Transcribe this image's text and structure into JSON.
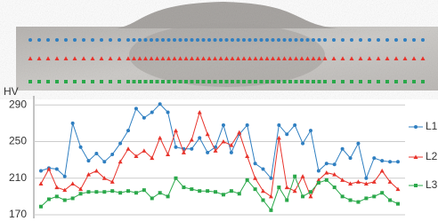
{
  "chart_data": {
    "type": "line",
    "y_label": "HV",
    "ylim": [
      170,
      300
    ],
    "yticks": [
      170,
      210,
      250,
      290
    ],
    "grid": true,
    "series": [
      {
        "name": "L1",
        "color": "#2f7fc1",
        "marker": "circle",
        "values": [
          218,
          221,
          220,
          212,
          270,
          244,
          229,
          237,
          228,
          236,
          248,
          262,
          286,
          276,
          282,
          291,
          282,
          244,
          242,
          242,
          254,
          238,
          244,
          268,
          238,
          258,
          268,
          226,
          220,
          210,
          268,
          258,
          268,
          248,
          262,
          218,
          226,
          225,
          242,
          232,
          248,
          210,
          232,
          229,
          228,
          228
        ]
      },
      {
        "name": "L2",
        "color": "#e8332b",
        "marker": "triangle",
        "values": [
          204,
          220,
          200,
          197,
          204,
          198,
          214,
          218,
          210,
          206,
          228,
          242,
          234,
          240,
          232,
          254,
          236,
          262,
          238,
          252,
          282,
          258,
          240,
          250,
          246,
          260,
          234,
          210,
          196,
          190,
          254,
          200,
          196,
          212,
          190,
          208,
          216,
          214,
          208,
          204,
          206,
          204,
          206,
          218,
          206,
          198
        ]
      },
      {
        "name": "L3",
        "color": "#2aa84a",
        "marker": "square",
        "values": [
          179,
          187,
          190,
          186,
          188,
          193,
          195,
          195,
          195,
          196,
          194,
          196,
          194,
          197,
          188,
          194,
          190,
          210,
          200,
          198,
          196,
          196,
          195,
          192,
          196,
          193,
          208,
          198,
          186,
          175,
          200,
          186,
          212,
          190,
          195,
          205,
          208,
          200,
          190,
          186,
          184,
          188,
          190,
          194,
          186,
          182
        ]
      }
    ]
  }
}
